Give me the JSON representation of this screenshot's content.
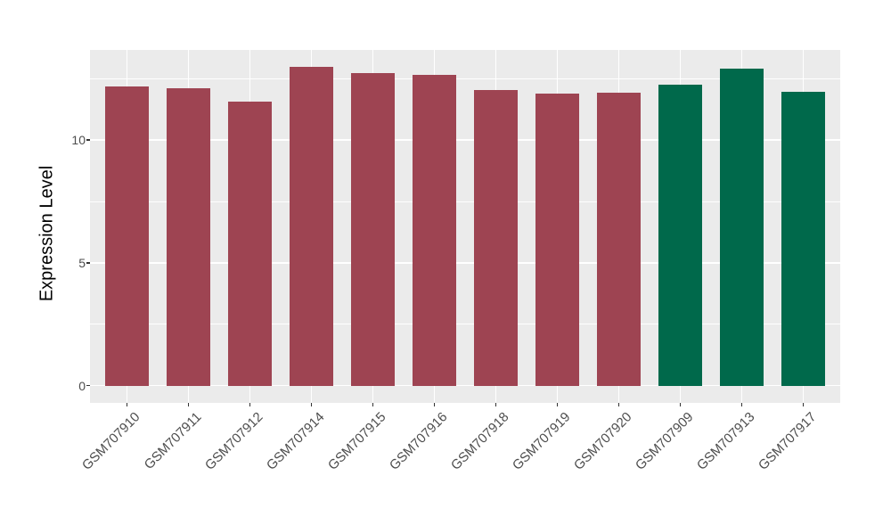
{
  "chart_data": {
    "type": "bar",
    "title": "",
    "xlabel": "",
    "ylabel": "Expression Level",
    "categories": [
      "GSM707910",
      "GSM707911",
      "GSM707912",
      "GSM707914",
      "GSM707915",
      "GSM707916",
      "GSM707918",
      "GSM707919",
      "GSM707920",
      "GSM707909",
      "GSM707913",
      "GSM707917"
    ],
    "values": [
      12.18,
      12.11,
      11.55,
      12.98,
      12.74,
      12.64,
      12.05,
      11.89,
      11.93,
      12.24,
      12.92,
      11.97
    ],
    "colors": [
      "#9e4452",
      "#9e4452",
      "#9e4452",
      "#9e4452",
      "#9e4452",
      "#9e4452",
      "#9e4452",
      "#9e4452",
      "#9e4452",
      "#00694b",
      "#00694b",
      "#00694b"
    ],
    "group_colors": {
      "maroon_group": "#9e4452",
      "green_group": "#00694b"
    },
    "yticks": [
      0,
      5,
      10
    ],
    "ytick_labels": [
      "0",
      "5",
      "10"
    ],
    "y_minor_gridlines": [
      2.5,
      7.5,
      12.5
    ],
    "ylim": [
      -0.7,
      13.67
    ],
    "bar_width_fraction": 0.7,
    "legend": "none",
    "grid": true
  },
  "style": {
    "panel_bg": "#ebebeb",
    "grid_color": "#ffffff",
    "axis_text_color": "#4d4d4d",
    "axis_title_color": "#000000",
    "tick_color": "#333333",
    "page_bg": "#ffffff"
  }
}
